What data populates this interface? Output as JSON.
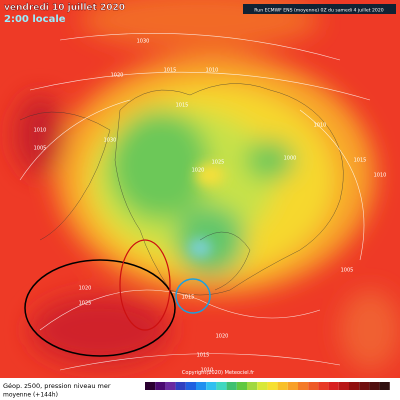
{
  "header": {
    "date": "vendredi 10 juillet 2020",
    "time": "2:00 locale",
    "run": "Run ECMWF ENS (moyenne) 0Z du samedi 4 juillet 2020"
  },
  "footer": {
    "title": "Géop. z500, pression niveau mer",
    "subtitle": "moyenne  (+144h)",
    "copyright": "Copyright(2020) Meteociel.fr"
  },
  "isobar_labels": [
    "1030",
    "1020",
    "1015",
    "1010",
    "1015",
    "1030",
    "1025",
    "1020",
    "1000",
    "1010",
    "1005",
    "1010",
    "1020",
    "1025",
    "1015",
    "1020",
    "1015",
    "1010",
    "1005",
    "1015",
    "1010"
  ]
}
